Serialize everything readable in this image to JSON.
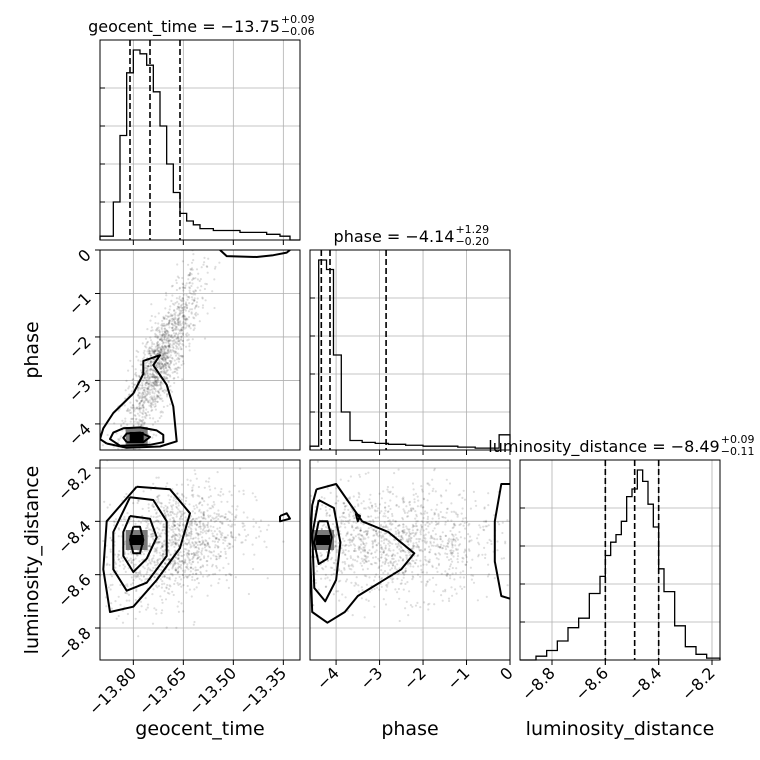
{
  "chart_data": {
    "type": "corner",
    "parameters": [
      "geocent_time",
      "phase",
      "luminosity_distance"
    ],
    "ranges": {
      "geocent_time": [
        -13.9,
        -13.3
      ],
      "phase": [
        -4.6,
        0
      ],
      "luminosity_distance": [
        -8.92,
        -8.17
      ]
    },
    "ticks": {
      "geocent_time": [
        -13.8,
        -13.65,
        -13.5,
        -13.35
      ],
      "phase": [
        -4,
        -3,
        -2,
        -1,
        0
      ],
      "luminosity_distance": [
        -8.8,
        -8.6,
        -8.4,
        -8.2
      ]
    },
    "tick_labels": {
      "geocent_time": [
        "−13.80",
        "−13.65",
        "−13.50",
        "−13.35"
      ],
      "phase": [
        "−4",
        "−3",
        "−2",
        "−1",
        "0"
      ],
      "luminosity_distance": [
        "−8.8",
        "−8.6",
        "−8.4",
        "−8.2"
      ]
    },
    "axis_labels": {
      "geocent_time": "geocent_time",
      "phase": "phase",
      "luminosity_distance": "luminosity_distance"
    },
    "titles": [
      {
        "param": "geocent_time",
        "main": "geocent_time = −13.75",
        "sup": "+0.09",
        "sub": "−0.06"
      },
      {
        "param": "phase",
        "main": "phase = −4.14",
        "sup": "+1.29",
        "sub": "−0.20"
      },
      {
        "param": "luminosity_distance",
        "main": "luminosity_distance = −8.49",
        "sup": "+0.09",
        "sub": "−0.11"
      }
    ],
    "quantiles": {
      "geocent_time": [
        -13.81,
        -13.75,
        -13.66
      ],
      "phase": [
        -4.34,
        -4.14,
        -2.85
      ],
      "luminosity_distance": [
        -8.6,
        -8.49,
        -8.4
      ]
    },
    "histograms": {
      "geocent_time": {
        "edges": [
          -13.9,
          -13.86,
          -13.84,
          -13.82,
          -13.8,
          -13.78,
          -13.76,
          -13.74,
          -13.72,
          -13.7,
          -13.68,
          -13.66,
          -13.64,
          -13.62,
          -13.6,
          -13.56,
          -13.52,
          -13.48,
          -13.44,
          -13.4,
          -13.36,
          -13.33,
          -13.3
        ],
        "counts": [
          0.02,
          0.2,
          0.55,
          0.88,
          1.0,
          0.98,
          0.92,
          0.78,
          0.6,
          0.4,
          0.25,
          0.14,
          0.1,
          0.08,
          0.06,
          0.05,
          0.05,
          0.04,
          0.04,
          0.03,
          0.02,
          0.0
        ]
      },
      "phase": {
        "edges": [
          -4.6,
          -4.4,
          -4.22,
          -4.06,
          -3.88,
          -3.68,
          -3.4,
          -3.1,
          -2.8,
          -2.4,
          -2.0,
          -1.6,
          -1.2,
          -0.8,
          -0.4,
          -0.25,
          0
        ],
        "counts": [
          0.02,
          1.0,
          0.95,
          0.5,
          0.2,
          0.05,
          0.04,
          0.035,
          0.03,
          0.025,
          0.02,
          0.02,
          0.015,
          0.01,
          0.01,
          0.08
        ]
      },
      "luminosity_distance": {
        "edges": [
          -8.92,
          -8.86,
          -8.82,
          -8.78,
          -8.74,
          -8.7,
          -8.66,
          -8.62,
          -8.6,
          -8.58,
          -8.56,
          -8.54,
          -8.52,
          -8.5,
          -8.48,
          -8.46,
          -8.44,
          -8.42,
          -8.4,
          -8.38,
          -8.34,
          -8.3,
          -8.26,
          -8.22,
          -8.17
        ],
        "counts": [
          0.0,
          0.02,
          0.05,
          0.1,
          0.17,
          0.22,
          0.35,
          0.44,
          0.55,
          0.62,
          0.66,
          0.73,
          0.86,
          0.9,
          1.0,
          0.94,
          0.82,
          0.7,
          0.48,
          0.36,
          0.18,
          0.07,
          0.03,
          0.01
        ]
      }
    },
    "scatter": [
      {
        "x": "geocent_time",
        "y": "phase",
        "mean": [
          -13.72,
          -2.6
        ],
        "spread": [
          0.06,
          1.0
        ],
        "corr": 0.85,
        "n": 1400
      },
      {
        "x": "geocent_time",
        "y": "luminosity_distance",
        "mean": [
          -13.68,
          -8.48
        ],
        "spread": [
          0.1,
          0.11
        ],
        "corr": 0.3,
        "n": 1300
      },
      {
        "x": "phase",
        "y": "luminosity_distance",
        "mean": [
          -2.8,
          -8.48
        ],
        "spread": [
          1.3,
          0.1
        ],
        "corr": 0.0,
        "n": 1400
      }
    ],
    "density_peaks": [
      {
        "x": "geocent_time",
        "y": "phase",
        "value": [
          -13.79,
          -4.3
        ]
      },
      {
        "x": "geocent_time",
        "y": "luminosity_distance",
        "value": [
          -13.79,
          -8.47
        ]
      },
      {
        "x": "phase",
        "y": "luminosity_distance",
        "value": [
          -4.3,
          -8.47
        ]
      }
    ],
    "contours": [
      {
        "x": "geocent_time",
        "y": "phase",
        "levels": [
          [
            [
              -13.84,
              -4.5
            ],
            [
              -13.75,
              -4.48
            ],
            [
              -13.71,
              -4.42
            ],
            [
              -13.71,
              -4.25
            ],
            [
              -13.73,
              -4.15
            ],
            [
              -13.78,
              -4.08
            ],
            [
              -13.83,
              -4.1
            ],
            [
              -13.86,
              -4.2
            ],
            [
              -13.87,
              -4.35
            ],
            [
              -13.84,
              -4.5
            ]
          ],
          [
            [
              -13.82,
              -4.42
            ],
            [
              -13.77,
              -4.42
            ],
            [
              -13.75,
              -4.3
            ],
            [
              -13.78,
              -4.2
            ],
            [
              -13.82,
              -4.22
            ],
            [
              -13.83,
              -4.32
            ],
            [
              -13.82,
              -4.42
            ]
          ],
          [
            [
              -13.88,
              -4.45
            ],
            [
              -13.82,
              -4.55
            ],
            [
              -13.72,
              -4.52
            ],
            [
              -13.67,
              -4.4
            ],
            [
              -13.68,
              -3.6
            ],
            [
              -13.7,
              -3.1
            ],
            [
              -13.74,
              -2.65
            ],
            [
              -13.72,
              -2.42
            ],
            [
              -13.77,
              -2.55
            ],
            [
              -13.77,
              -2.85
            ],
            [
              -13.8,
              -3.3
            ],
            [
              -13.86,
              -3.75
            ],
            [
              -13.89,
              -4.1
            ],
            [
              -13.9,
              -4.35
            ],
            [
              -13.88,
              -4.45
            ]
          ],
          [
            [
              -13.54,
              0.0
            ],
            [
              -13.52,
              -0.14
            ],
            [
              -13.43,
              -0.16
            ],
            [
              -13.38,
              -0.12
            ],
            [
              -13.34,
              -0.06
            ],
            [
              -13.33,
              0.0
            ]
          ]
        ]
      },
      {
        "x": "geocent_time",
        "y": "luminosity_distance",
        "levels": [
          [
            [
              -13.8,
              -8.42
            ],
            [
              -13.78,
              -8.42
            ],
            [
              -13.77,
              -8.47
            ],
            [
              -13.78,
              -8.52
            ],
            [
              -13.8,
              -8.52
            ],
            [
              -13.81,
              -8.47
            ],
            [
              -13.8,
              -8.42
            ]
          ],
          [
            [
              -13.81,
              -8.38
            ],
            [
              -13.75,
              -8.39
            ],
            [
              -13.73,
              -8.46
            ],
            [
              -13.76,
              -8.54
            ],
            [
              -13.8,
              -8.59
            ],
            [
              -13.83,
              -8.53
            ],
            [
              -13.83,
              -8.44
            ],
            [
              -13.81,
              -8.38
            ]
          ],
          [
            [
              -13.81,
              -8.31
            ],
            [
              -13.74,
              -8.32
            ],
            [
              -13.7,
              -8.4
            ],
            [
              -13.7,
              -8.53
            ],
            [
              -13.76,
              -8.63
            ],
            [
              -13.82,
              -8.66
            ],
            [
              -13.86,
              -8.58
            ],
            [
              -13.86,
              -8.44
            ],
            [
              -13.81,
              -8.31
            ]
          ],
          [
            [
              -13.79,
              -8.27
            ],
            [
              -13.69,
              -8.28
            ],
            [
              -13.63,
              -8.37
            ],
            [
              -13.66,
              -8.5
            ],
            [
              -13.73,
              -8.62
            ],
            [
              -13.8,
              -8.72
            ],
            [
              -13.87,
              -8.74
            ],
            [
              -13.89,
              -8.58
            ],
            [
              -13.88,
              -8.4
            ],
            [
              -13.79,
              -8.27
            ]
          ],
          [
            [
              -13.36,
              -8.38
            ],
            [
              -13.34,
              -8.37
            ],
            [
              -13.33,
              -8.39
            ],
            [
              -13.36,
              -8.4
            ],
            [
              -13.36,
              -8.38
            ]
          ]
        ]
      },
      {
        "x": "phase",
        "y": "luminosity_distance",
        "levels": [
          [
            [
              -4.4,
              -8.4
            ],
            [
              -4.2,
              -8.4
            ],
            [
              -4.1,
              -8.46
            ],
            [
              -4.2,
              -8.54
            ],
            [
              -4.4,
              -8.56
            ],
            [
              -4.5,
              -8.48
            ],
            [
              -4.4,
              -8.4
            ]
          ],
          [
            [
              -4.4,
              -8.32
            ],
            [
              -4.05,
              -8.35
            ],
            [
              -3.9,
              -8.48
            ],
            [
              -4.0,
              -8.62
            ],
            [
              -4.25,
              -8.7
            ],
            [
              -4.5,
              -8.65
            ],
            [
              -4.55,
              -8.45
            ],
            [
              -4.4,
              -8.32
            ]
          ],
          [
            [
              -4.45,
              -8.28
            ],
            [
              -4.0,
              -8.26
            ],
            [
              -3.4,
              -8.4
            ],
            [
              -2.8,
              -8.44
            ],
            [
              -2.2,
              -8.52
            ],
            [
              -2.5,
              -8.58
            ],
            [
              -3.5,
              -8.68
            ],
            [
              -3.8,
              -8.74
            ],
            [
              -4.2,
              -8.78
            ],
            [
              -4.55,
              -8.74
            ],
            [
              -4.6,
              -8.5
            ],
            [
              -4.55,
              -8.34
            ],
            [
              -4.45,
              -8.28
            ]
          ],
          [
            [
              -3.55,
              -8.37
            ],
            [
              -3.45,
              -8.38
            ],
            [
              -3.5,
              -8.4
            ],
            [
              -3.55,
              -8.37
            ]
          ],
          [
            [
              0.0,
              -8.26
            ],
            [
              -0.2,
              -8.26
            ],
            [
              -0.35,
              -8.4
            ],
            [
              -0.35,
              -8.55
            ],
            [
              -0.2,
              -8.68
            ],
            [
              0.0,
              -8.69
            ]
          ]
        ]
      }
    ]
  }
}
